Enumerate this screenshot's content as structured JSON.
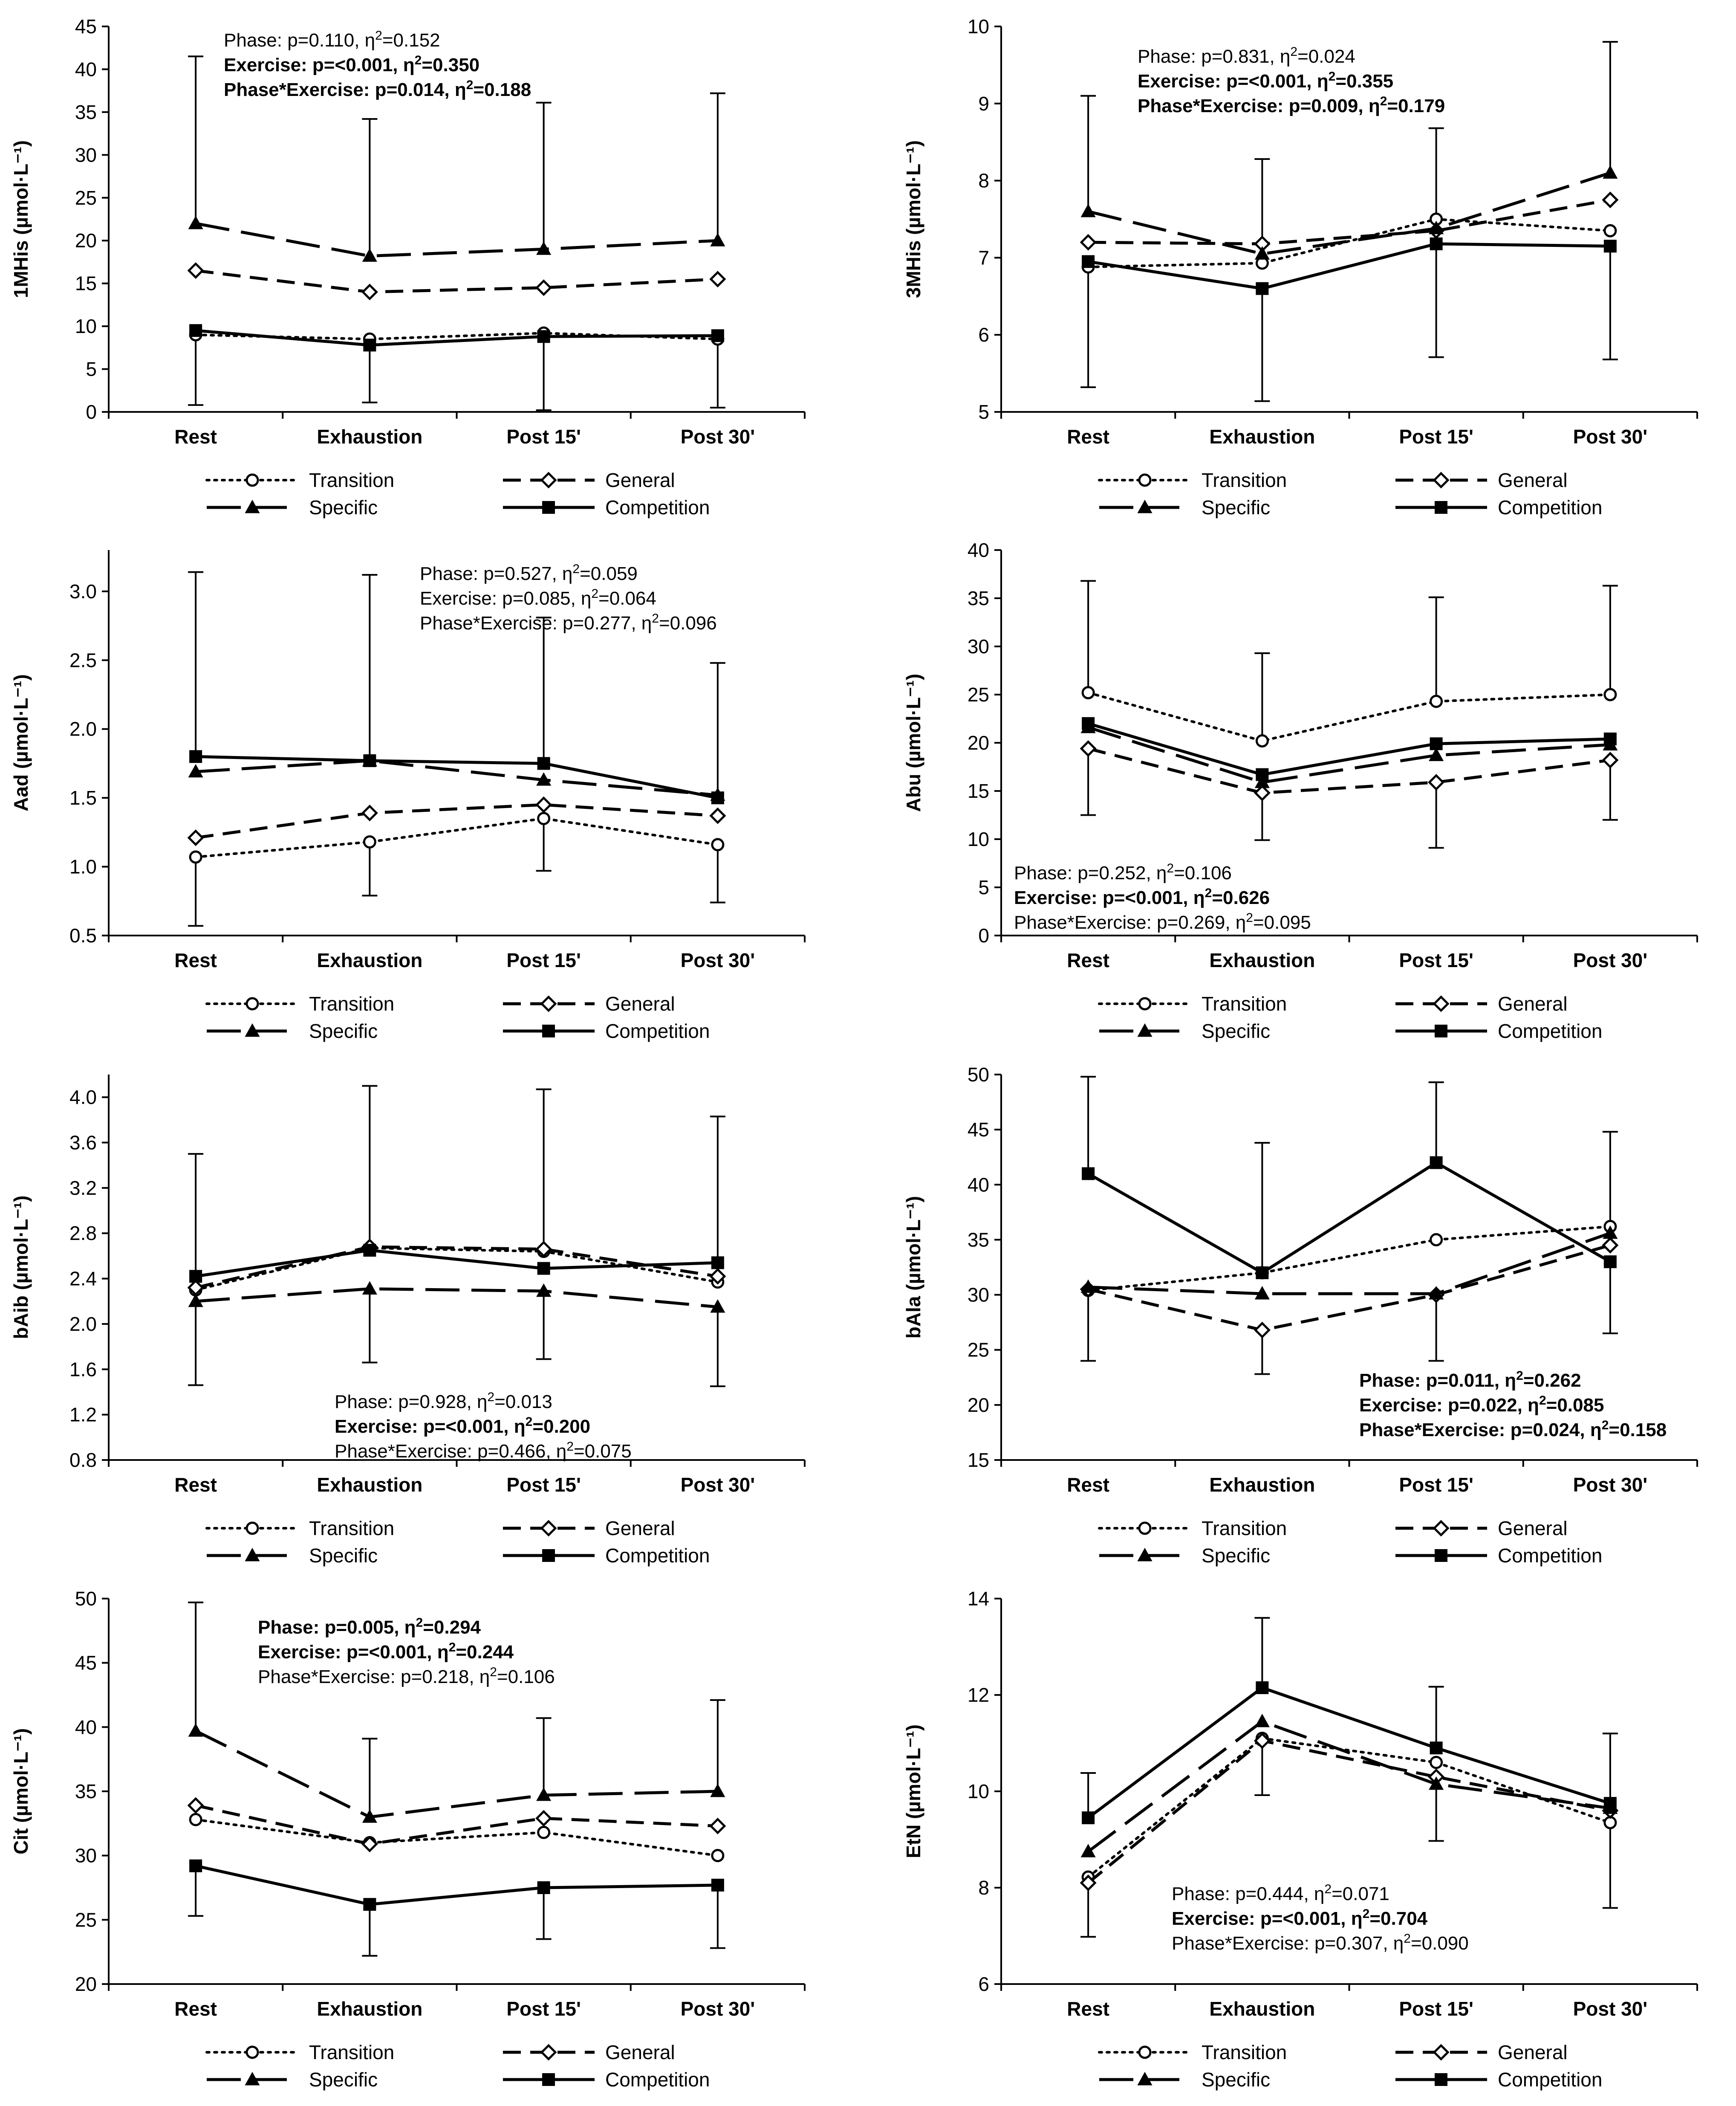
{
  "chart_data": [
    {
      "type": "line",
      "ylabel": "1MHis (µmol·L⁻¹)",
      "categories": [
        "Rest",
        "Exhaustion",
        "Post 15'",
        "Post 30'"
      ],
      "ylim": [
        0,
        45
      ],
      "yticks": [
        0,
        5,
        10,
        15,
        20,
        25,
        30,
        35,
        40,
        45
      ],
      "ytick_labels": [
        "0",
        "5",
        "10",
        "15",
        "20",
        "25",
        "30",
        "35",
        "40",
        "45"
      ],
      "series": [
        {
          "name": "Transition",
          "values": [
            9.0,
            8.5,
            9.2,
            8.5
          ]
        },
        {
          "name": "General",
          "values": [
            16.5,
            14.0,
            14.5,
            15.5
          ]
        },
        {
          "name": "Specific",
          "values": [
            22.0,
            18.2,
            19.0,
            20.0
          ]
        },
        {
          "name": "Competition",
          "values": [
            9.5,
            7.8,
            8.8,
            8.9
          ]
        }
      ],
      "error_bars": [
        {
          "category": "Rest",
          "value": 22.0,
          "high": 41.5
        },
        {
          "category": "Rest",
          "value": 9.5,
          "low": 0.8
        },
        {
          "category": "Exhaustion",
          "value": 18.2,
          "high": 34.2
        },
        {
          "category": "Exhaustion",
          "value": 7.8,
          "low": 1.1
        },
        {
          "category": "Post 15'",
          "value": 19.0,
          "high": 36.1
        },
        {
          "category": "Post 15'",
          "value": 8.8,
          "low": 0.2
        },
        {
          "category": "Post 30'",
          "value": 20.0,
          "high": 37.2
        },
        {
          "category": "Post 30'",
          "value": 8.9,
          "low": 0.5
        }
      ],
      "stats": [
        {
          "label": "Phase",
          "p": "0.110",
          "eta2": "0.152",
          "bold": false
        },
        {
          "label": "Exercise",
          "p": "<0.001",
          "eta2": "0.350",
          "bold": true
        },
        {
          "label": "Phase*Exercise",
          "p": "0.014",
          "eta2": "0.188",
          "bold": true
        }
      ]
    },
    {
      "type": "line",
      "ylabel": "3MHis (µmol·L⁻¹)",
      "categories": [
        "Rest",
        "Exhaustion",
        "Post 15'",
        "Post 30'"
      ],
      "ylim": [
        5,
        10
      ],
      "yticks": [
        5,
        6,
        7,
        8,
        9,
        10
      ],
      "ytick_labels": [
        "5",
        "6",
        "7",
        "8",
        "9",
        "10"
      ],
      "series": [
        {
          "name": "Transition",
          "values": [
            6.88,
            6.93,
            7.5,
            7.35
          ]
        },
        {
          "name": "General",
          "values": [
            7.2,
            7.18,
            7.35,
            7.75
          ]
        },
        {
          "name": "Specific",
          "values": [
            7.6,
            7.05,
            7.38,
            8.1
          ]
        },
        {
          "name": "Competition",
          "values": [
            6.95,
            6.6,
            7.18,
            7.15
          ]
        }
      ],
      "error_bars": [
        {
          "category": "Rest",
          "value": 7.6,
          "high": 9.1
        },
        {
          "category": "Rest",
          "value": 6.95,
          "low": 5.32
        },
        {
          "category": "Exhaustion",
          "value": 7.05,
          "high": 8.28
        },
        {
          "category": "Exhaustion",
          "value": 6.6,
          "low": 5.14
        },
        {
          "category": "Post 15'",
          "value": 7.38,
          "high": 8.68
        },
        {
          "category": "Post 15'",
          "value": 7.18,
          "low": 5.71
        },
        {
          "category": "Post 30'",
          "value": 8.1,
          "high": 9.8
        },
        {
          "category": "Post 30'",
          "value": 7.15,
          "low": 5.68
        }
      ],
      "stats": [
        {
          "label": "Phase",
          "p": "0.831",
          "eta2": "0.024",
          "bold": false
        },
        {
          "label": "Exercise",
          "p": "<0.001",
          "eta2": "0.355",
          "bold": true
        },
        {
          "label": "Phase*Exercise",
          "p": "0.009",
          "eta2": "0.179",
          "bold": true
        }
      ]
    },
    {
      "type": "line",
      "ylabel": "Aad (µmol·L⁻¹)",
      "categories": [
        "Rest",
        "Exhaustion",
        "Post 15'",
        "Post 30'"
      ],
      "ylim": [
        0.5,
        3.3
      ],
      "yticks": [
        0.5,
        1.0,
        1.5,
        2.0,
        2.5,
        3.0
      ],
      "ytick_labels": [
        "0.5",
        "1.0",
        "1.5",
        "2.0",
        "2.5",
        "3.0"
      ],
      "series": [
        {
          "name": "Transition",
          "values": [
            1.07,
            1.18,
            1.35,
            1.16
          ]
        },
        {
          "name": "General",
          "values": [
            1.21,
            1.39,
            1.45,
            1.37
          ]
        },
        {
          "name": "Specific",
          "values": [
            1.69,
            1.77,
            1.63,
            1.52
          ]
        },
        {
          "name": "Competition",
          "values": [
            1.8,
            1.77,
            1.75,
            1.5
          ]
        }
      ],
      "error_bars": [
        {
          "category": "Rest",
          "value": 1.8,
          "high": 3.14
        },
        {
          "category": "Rest",
          "value": 1.07,
          "low": 0.57
        },
        {
          "category": "Exhaustion",
          "value": 1.77,
          "high": 3.12
        },
        {
          "category": "Exhaustion",
          "value": 1.18,
          "low": 0.79
        },
        {
          "category": "Post 15'",
          "value": 1.75,
          "high": 2.81
        },
        {
          "category": "Post 15'",
          "value": 1.35,
          "low": 0.97
        },
        {
          "category": "Post 30'",
          "value": 1.52,
          "high": 2.48
        },
        {
          "category": "Post 30'",
          "value": 1.16,
          "low": 0.74
        }
      ],
      "stats": [
        {
          "label": "Phase",
          "p": "0.527",
          "eta2": "0.059",
          "bold": false
        },
        {
          "label": "Exercise",
          "p": "0.085",
          "eta2": "0.064",
          "bold": false
        },
        {
          "label": "Phase*Exercise",
          "p": "0.277",
          "eta2": "0.096",
          "bold": false
        }
      ]
    },
    {
      "type": "line",
      "ylabel": "Abu (µmol·L⁻¹)",
      "categories": [
        "Rest",
        "Exhaustion",
        "Post 15'",
        "Post 30'"
      ],
      "ylim": [
        0,
        40
      ],
      "yticks": [
        0,
        5,
        10,
        15,
        20,
        25,
        30,
        35,
        40
      ],
      "ytick_labels": [
        "0",
        "5",
        "10",
        "15",
        "20",
        "25",
        "30",
        "35",
        "40"
      ],
      "series": [
        {
          "name": "Transition",
          "values": [
            25.2,
            20.2,
            24.3,
            25.0
          ]
        },
        {
          "name": "General",
          "values": [
            19.4,
            14.8,
            15.9,
            18.2
          ]
        },
        {
          "name": "Specific",
          "values": [
            21.6,
            15.9,
            18.7,
            19.8
          ]
        },
        {
          "name": "Competition",
          "values": [
            22.0,
            16.7,
            19.9,
            20.4
          ]
        }
      ],
      "error_bars": [
        {
          "category": "Rest",
          "value": 25.2,
          "high": 36.8
        },
        {
          "category": "Rest",
          "value": 19.4,
          "low": 12.5
        },
        {
          "category": "Exhaustion",
          "value": 20.2,
          "high": 29.3
        },
        {
          "category": "Exhaustion",
          "value": 14.8,
          "low": 9.9
        },
        {
          "category": "Post 15'",
          "value": 24.3,
          "high": 35.1
        },
        {
          "category": "Post 15'",
          "value": 15.9,
          "low": 9.1
        },
        {
          "category": "Post 30'",
          "value": 25.0,
          "high": 36.3
        },
        {
          "category": "Post 30'",
          "value": 18.2,
          "low": 12.0
        }
      ],
      "stats": [
        {
          "label": "Phase",
          "p": "0.252",
          "eta2": "0.106",
          "bold": false
        },
        {
          "label": "Exercise",
          "p": "<0.001",
          "eta2": "0.626",
          "bold": true
        },
        {
          "label": "Phase*Exercise",
          "p": "0.269",
          "eta2": "0.095",
          "bold": false
        }
      ]
    },
    {
      "type": "line",
      "ylabel": "bAib (µmol·L⁻¹)",
      "categories": [
        "Rest",
        "Exhaustion",
        "Post 15'",
        "Post 30'"
      ],
      "ylim": [
        0.8,
        4.2
      ],
      "yticks": [
        0.8,
        1.2,
        1.6,
        2.0,
        2.4,
        2.8,
        3.2,
        3.6,
        4.0
      ],
      "ytick_labels": [
        "0.8",
        "1.2",
        "1.6",
        "2.0",
        "2.4",
        "2.8",
        "3.2",
        "3.6",
        "4.0"
      ],
      "series": [
        {
          "name": "Transition",
          "values": [
            2.3,
            2.67,
            2.64,
            2.37
          ]
        },
        {
          "name": "General",
          "values": [
            2.32,
            2.68,
            2.66,
            2.42
          ]
        },
        {
          "name": "Specific",
          "values": [
            2.2,
            2.31,
            2.29,
            2.15
          ]
        },
        {
          "name": "Competition",
          "values": [
            2.42,
            2.65,
            2.49,
            2.54
          ]
        }
      ],
      "error_bars": [
        {
          "category": "Rest",
          "value": 2.42,
          "high": 3.5
        },
        {
          "category": "Rest",
          "value": 2.2,
          "low": 1.46
        },
        {
          "category": "Exhaustion",
          "value": 2.68,
          "high": 4.1
        },
        {
          "category": "Exhaustion",
          "value": 2.31,
          "low": 1.66
        },
        {
          "category": "Post 15'",
          "value": 2.66,
          "high": 4.07
        },
        {
          "category": "Post 15'",
          "value": 2.29,
          "low": 1.69
        },
        {
          "category": "Post 30'",
          "value": 2.54,
          "high": 3.83
        },
        {
          "category": "Post 30'",
          "value": 2.15,
          "low": 1.45
        }
      ],
      "stats": [
        {
          "label": "Phase",
          "p": "0.928",
          "eta2": "0.013",
          "bold": false
        },
        {
          "label": "Exercise",
          "p": "<0.001",
          "eta2": "0.200",
          "bold": true
        },
        {
          "label": "Phase*Exercise",
          "p": "0.466",
          "eta2": "0.075",
          "bold": false
        }
      ]
    },
    {
      "type": "line",
      "ylabel": "bAla (µmol·L⁻¹)",
      "categories": [
        "Rest",
        "Exhaustion",
        "Post 15'",
        "Post 30'"
      ],
      "ylim": [
        15,
        50
      ],
      "yticks": [
        15,
        20,
        25,
        30,
        35,
        40,
        45,
        50
      ],
      "ytick_labels": [
        "15",
        "20",
        "25",
        "30",
        "35",
        "40",
        "45",
        "50"
      ],
      "series": [
        {
          "name": "Transition",
          "values": [
            30.4,
            32.0,
            35.0,
            36.2
          ]
        },
        {
          "name": "General",
          "values": [
            30.5,
            26.8,
            30.0,
            34.5
          ]
        },
        {
          "name": "Specific",
          "values": [
            30.7,
            30.1,
            30.1,
            35.6
          ]
        },
        {
          "name": "Competition",
          "values": [
            41.0,
            32.0,
            42.0,
            33.0
          ]
        }
      ],
      "error_bars": [
        {
          "category": "Rest",
          "value": 41.0,
          "high": 49.8
        },
        {
          "category": "Rest",
          "value": 30.4,
          "low": 24.0
        },
        {
          "category": "Exhaustion",
          "value": 32.0,
          "high": 43.8
        },
        {
          "category": "Exhaustion",
          "value": 26.8,
          "low": 22.8
        },
        {
          "category": "Post 15'",
          "value": 42.0,
          "high": 49.3
        },
        {
          "category": "Post 15'",
          "value": 30.0,
          "low": 24.0
        },
        {
          "category": "Post 30'",
          "value": 36.2,
          "high": 44.8
        },
        {
          "category": "Post 30'",
          "value": 33.0,
          "low": 26.5
        }
      ],
      "stats": [
        {
          "label": "Phase",
          "p": "0.011",
          "eta2": "0.262",
          "bold": true
        },
        {
          "label": "Exercise",
          "p": "0.022",
          "eta2": "0.085",
          "bold": true
        },
        {
          "label": "Phase*Exercise",
          "p": "0.024",
          "eta2": "0.158",
          "bold": true
        }
      ]
    },
    {
      "type": "line",
      "ylabel": "Cit (µmol·L⁻¹)",
      "categories": [
        "Rest",
        "Exhaustion",
        "Post 15'",
        "Post 30'"
      ],
      "ylim": [
        20,
        50
      ],
      "yticks": [
        20,
        25,
        30,
        35,
        40,
        45,
        50
      ],
      "ytick_labels": [
        "20",
        "25",
        "30",
        "35",
        "40",
        "45",
        "50"
      ],
      "series": [
        {
          "name": "Transition",
          "values": [
            32.8,
            31.0,
            31.8,
            30.0
          ]
        },
        {
          "name": "General",
          "values": [
            33.9,
            30.9,
            32.9,
            32.3
          ]
        },
        {
          "name": "Specific",
          "values": [
            39.7,
            33.0,
            34.7,
            35.0
          ]
        },
        {
          "name": "Competition",
          "values": [
            29.2,
            26.2,
            27.5,
            27.7
          ]
        }
      ],
      "error_bars": [
        {
          "category": "Rest",
          "value": 39.7,
          "high": 49.7
        },
        {
          "category": "Rest",
          "value": 29.2,
          "low": 25.3
        },
        {
          "category": "Exhaustion",
          "value": 33.0,
          "high": 39.1
        },
        {
          "category": "Exhaustion",
          "value": 26.2,
          "low": 22.2
        },
        {
          "category": "Post 15'",
          "value": 34.7,
          "high": 40.7
        },
        {
          "category": "Post 15'",
          "value": 27.5,
          "low": 23.5
        },
        {
          "category": "Post 30'",
          "value": 35.0,
          "high": 42.1
        },
        {
          "category": "Post 30'",
          "value": 27.7,
          "low": 22.8
        }
      ],
      "stats": [
        {
          "label": "Phase",
          "p": "0.005",
          "eta2": "0.294",
          "bold": true
        },
        {
          "label": "Exercise",
          "p": "<0.001",
          "eta2": "0.244",
          "bold": true
        },
        {
          "label": "Phase*Exercise",
          "p": "0.218",
          "eta2": "0.106",
          "bold": false
        }
      ]
    },
    {
      "type": "line",
      "ylabel": "EtN (µmol·L⁻¹)",
      "categories": [
        "Rest",
        "Exhaustion",
        "Post 15'",
        "Post 30'"
      ],
      "ylim": [
        6,
        14
      ],
      "yticks": [
        6,
        8,
        10,
        12,
        14
      ],
      "ytick_labels": [
        "6",
        "8",
        "10",
        "12",
        "14"
      ],
      "series": [
        {
          "name": "Transition",
          "values": [
            8.22,
            11.1,
            10.6,
            9.35
          ]
        },
        {
          "name": "General",
          "values": [
            8.1,
            11.05,
            10.3,
            9.6
          ]
        },
        {
          "name": "Specific",
          "values": [
            8.75,
            11.45,
            10.15,
            9.65
          ]
        },
        {
          "name": "Competition",
          "values": [
            9.45,
            12.15,
            10.9,
            9.75
          ]
        }
      ],
      "error_bars": [
        {
          "category": "Rest",
          "value": 9.45,
          "high": 10.38
        },
        {
          "category": "Rest",
          "value": 8.1,
          "low": 6.98
        },
        {
          "category": "Exhaustion",
          "value": 12.15,
          "high": 13.6
        },
        {
          "category": "Exhaustion",
          "value": 11.05,
          "low": 9.92
        },
        {
          "category": "Post 15'",
          "value": 10.9,
          "high": 12.17
        },
        {
          "category": "Post 15'",
          "value": 10.15,
          "low": 8.97
        },
        {
          "category": "Post 30'",
          "value": 9.75,
          "high": 11.2
        },
        {
          "category": "Post 30'",
          "value": 9.35,
          "low": 7.58
        }
      ],
      "stats": [
        {
          "label": "Phase",
          "p": "0.444",
          "eta2": "0.071",
          "bold": false
        },
        {
          "label": "Exercise",
          "p": "<0.001",
          "eta2": "0.704",
          "bold": true
        },
        {
          "label": "Phase*Exercise",
          "p": "0.307",
          "eta2": "0.090",
          "bold": false
        }
      ]
    }
  ],
  "legend": {
    "entries": [
      "Transition",
      "General",
      "Specific",
      "Competition"
    ]
  }
}
